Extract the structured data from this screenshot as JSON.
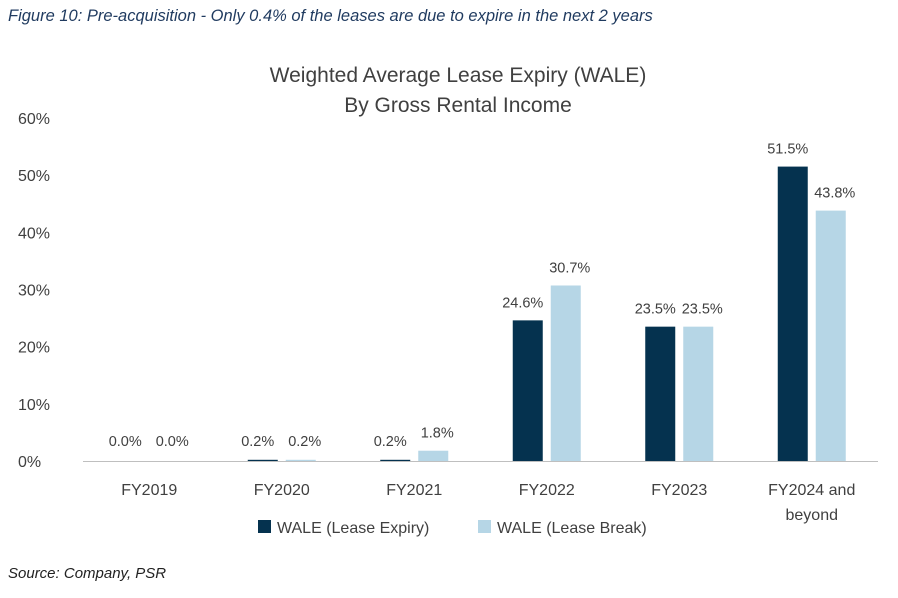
{
  "caption": "Figure 10: Pre-acquisition - Only 0.4% of the leases are due to expire in the next 2 years",
  "source": "Source: Company, PSR",
  "colors": {
    "lease_expiry": "#05324f",
    "lease_break": "#b6d6e6",
    "axis": "#bfbfbf"
  },
  "chart_data": {
    "type": "bar",
    "title": "Weighted Average Lease Expiry (WALE)",
    "subtitle": "By Gross Rental Income",
    "categories": [
      "FY2019",
      "FY2020",
      "FY2021",
      "FY2022",
      "FY2023",
      "FY2024 and beyond"
    ],
    "category_lines": [
      [
        "FY2019"
      ],
      [
        "FY2020"
      ],
      [
        "FY2021"
      ],
      [
        "FY2022"
      ],
      [
        "FY2023"
      ],
      [
        "FY2024 and",
        "beyond"
      ]
    ],
    "series": [
      {
        "name": "WALE (Lease Expiry)",
        "values": [
          0.0,
          0.2,
          0.2,
          24.6,
          23.5,
          51.5
        ],
        "labels": [
          "0.0%",
          "0.2%",
          "0.2%",
          "24.6%",
          "23.5%",
          "51.5%"
        ]
      },
      {
        "name": "WALE (Lease Break)",
        "values": [
          0.0,
          0.2,
          1.8,
          30.7,
          23.5,
          43.8
        ],
        "labels": [
          "0.0%",
          "0.2%",
          "1.8%",
          "30.7%",
          "23.5%",
          "43.8%"
        ]
      }
    ],
    "ylim": [
      0,
      60
    ],
    "yticks": [
      0,
      10,
      20,
      30,
      40,
      50,
      60
    ],
    "ytick_labels": [
      "0%",
      "10%",
      "20%",
      "30%",
      "40%",
      "50%",
      "60%"
    ],
    "grid": false,
    "legend": "bottom"
  }
}
